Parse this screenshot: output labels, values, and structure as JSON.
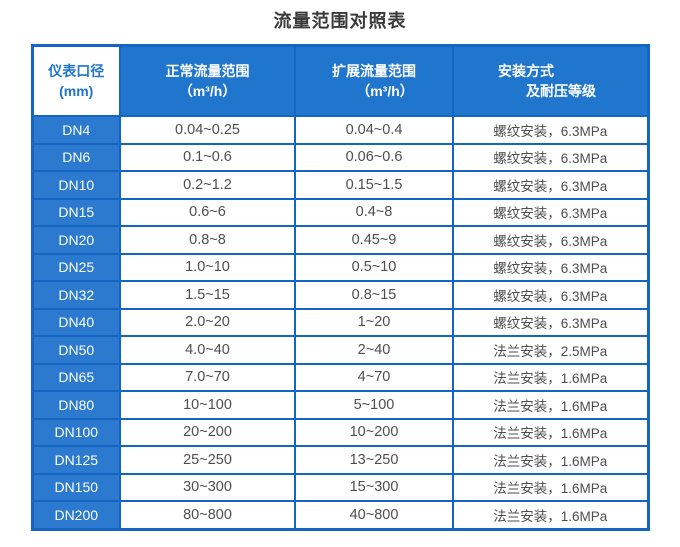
{
  "title": "流量范围对照表",
  "colors": {
    "header_blue": "#2075cd",
    "label_blue": "#2b7ad0",
    "border_blue": "#1566c3",
    "data_text": "#4e4e4e",
    "title_text": "#3a3a3a"
  },
  "table": {
    "header": {
      "col1_line1": "仪表口径",
      "col1_line2": "(mm)",
      "col2_line1": "正常流量范围",
      "col2_line2": "（m³/h）",
      "col3_line1": "扩展流量范围",
      "col3_line2": "（m³/h）",
      "col4_line1": "安装方式",
      "col4_line2": "及耐压等级"
    },
    "rows": [
      {
        "dn": "DN4",
        "normal": "0.04~0.25",
        "extended": "0.04~0.4",
        "install": "螺纹安装，6.3MPa"
      },
      {
        "dn": "DN6",
        "normal": "0.1~0.6",
        "extended": "0.06~0.6",
        "install": "螺纹安装，6.3MPa"
      },
      {
        "dn": "DN10",
        "normal": "0.2~1.2",
        "extended": "0.15~1.5",
        "install": "螺纹安装，6.3MPa"
      },
      {
        "dn": "DN15",
        "normal": "0.6~6",
        "extended": "0.4~8",
        "install": "螺纹安装，6.3MPa"
      },
      {
        "dn": "DN20",
        "normal": "0.8~8",
        "extended": "0.45~9",
        "install": "螺纹安装，6.3MPa"
      },
      {
        "dn": "DN25",
        "normal": "1.0~10",
        "extended": "0.5~10",
        "install": "螺纹安装，6.3MPa"
      },
      {
        "dn": "DN32",
        "normal": "1.5~15",
        "extended": "0.8~15",
        "install": "螺纹安装，6.3MPa"
      },
      {
        "dn": "DN40",
        "normal": "2.0~20",
        "extended": "1~20",
        "install": "螺纹安装，6.3MPa"
      },
      {
        "dn": "DN50",
        "normal": "4.0~40",
        "extended": "2~40",
        "install": "法兰安装，2.5MPa"
      },
      {
        "dn": "DN65",
        "normal": "7.0~70",
        "extended": "4~70",
        "install": "法兰安装，1.6MPa"
      },
      {
        "dn": "DN80",
        "normal": "10~100",
        "extended": "5~100",
        "install": "法兰安装，1.6MPa"
      },
      {
        "dn": "DN100",
        "normal": "20~200",
        "extended": "10~200",
        "install": "法兰安装，1.6MPa"
      },
      {
        "dn": "DN125",
        "normal": "25~250",
        "extended": "13~250",
        "install": "法兰安装，1.6MPa"
      },
      {
        "dn": "DN150",
        "normal": "30~300",
        "extended": "15~300",
        "install": "法兰安装，1.6MPa"
      },
      {
        "dn": "DN200",
        "normal": "80~800",
        "extended": "40~800",
        "install": "法兰安装，1.6MPa"
      }
    ]
  }
}
